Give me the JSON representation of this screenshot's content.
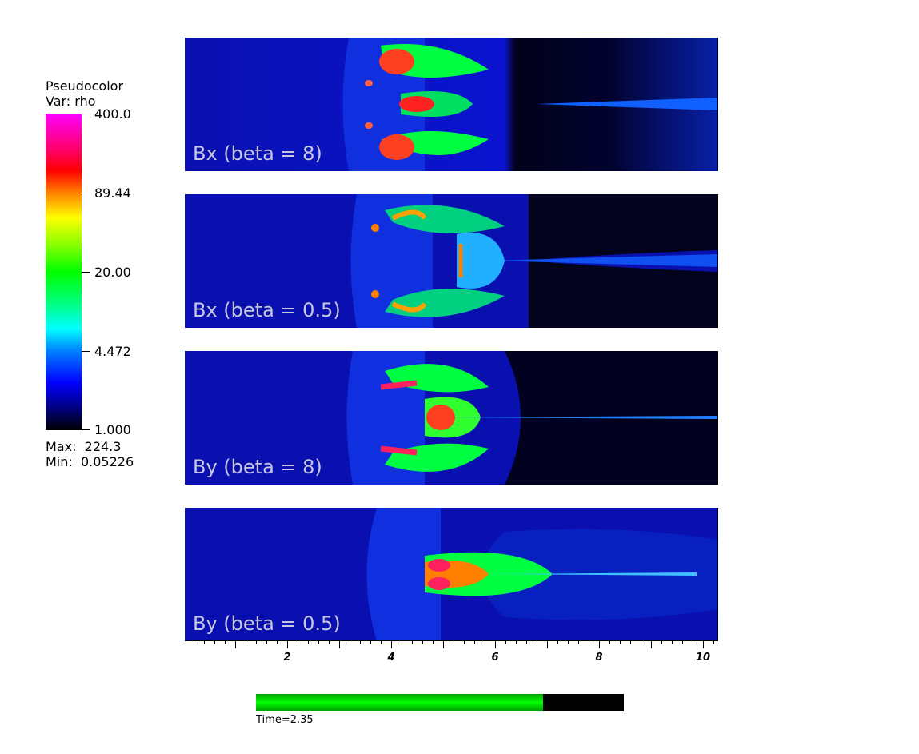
{
  "legend": {
    "title_line1": "Pseudocolor",
    "title_line2": "Var: rho",
    "ticks": [
      "400.0",
      "89.44",
      "20.00",
      "4.472",
      "1.000"
    ],
    "max_text": "Max:  224.3",
    "min_text": "Min:  0.05226",
    "colormap": [
      "#ff00ff",
      "#ff0000",
      "#ffff00",
      "#00ff00",
      "#00ffff",
      "#0000ff",
      "#000000"
    ]
  },
  "panels": [
    {
      "label": "Bx (beta = 8)"
    },
    {
      "label": "Bx (beta = 0.5)"
    },
    {
      "label": "By (beta = 8)"
    },
    {
      "label": "By (beta = 0.5)"
    }
  ],
  "x_axis": {
    "labels": [
      "2",
      "4",
      "6",
      "8",
      "10"
    ],
    "range": [
      0,
      10.25
    ]
  },
  "time": {
    "label": "Time=2.35",
    "progress_fraction": 0.78
  }
}
